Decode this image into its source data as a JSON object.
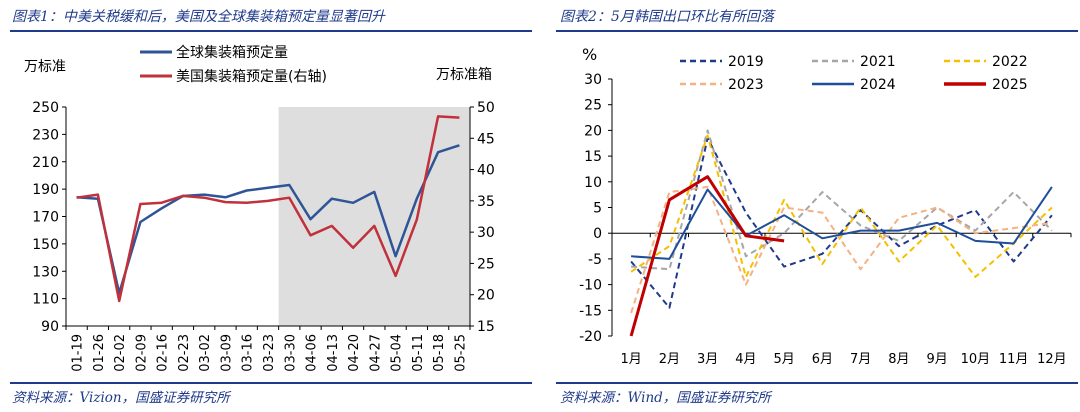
{
  "left": {
    "title": "图表1：中美关税缓和后，美国及全球集装箱预定量显著回升",
    "source": "资料来源：Vizion，国盛证券研究所",
    "chart_data": {
      "type": "line",
      "left_unit": "万标准",
      "right_unit": "万标准箱",
      "categories": [
        "01-19",
        "01-26",
        "02-02",
        "02-09",
        "02-16",
        "02-23",
        "03-02",
        "03-09",
        "03-16",
        "03-23",
        "03-30",
        "04-06",
        "04-13",
        "04-20",
        "04-27",
        "05-04",
        "05-11",
        "05-18",
        "05-25"
      ],
      "ylim_left": [
        90,
        250
      ],
      "yticks_left": [
        90,
        110,
        130,
        150,
        170,
        190,
        210,
        230,
        250
      ],
      "ylim_right": [
        15,
        50
      ],
      "yticks_right": [
        15,
        20,
        25,
        30,
        35,
        40,
        45,
        50
      ],
      "shaded_from": "03-30",
      "series": [
        {
          "name": "全球集装箱预定量",
          "axis": "left",
          "color": "#2f5597",
          "values": [
            184,
            183,
            114,
            166,
            176,
            185,
            186,
            184,
            189,
            191,
            193,
            168,
            183,
            180,
            188,
            141,
            183,
            217,
            222
          ]
        },
        {
          "name": "美国集装箱预定量(右轴)",
          "axis": "right",
          "color": "#c0313b",
          "values": [
            35.5,
            36,
            19,
            34.5,
            34.7,
            35.8,
            35.5,
            34.8,
            34.7,
            35,
            35.5,
            29.5,
            31,
            27.5,
            31,
            23,
            32,
            48.5,
            48.3
          ]
        }
      ],
      "grid": false,
      "legend": "top-left"
    }
  },
  "right": {
    "title": "图表2：5月韩国出口环比有所回落",
    "source": "资料来源：Wind，国盛证券研究所",
    "chart_data": {
      "type": "line",
      "ylabel": "%",
      "categories": [
        "1月",
        "2月",
        "3月",
        "4月",
        "5月",
        "6月",
        "7月",
        "8月",
        "9月",
        "10月",
        "11月",
        "12月"
      ],
      "ylim": [
        -20,
        30
      ],
      "yticks": [
        -20,
        -15,
        -10,
        -5,
        0,
        5,
        10,
        15,
        20,
        25,
        30
      ],
      "grid": false,
      "legend": "top",
      "series": [
        {
          "name": "2019",
          "color": "#1f3a8a",
          "dash": "6,4",
          "width": 2,
          "values": [
            -5.5,
            -14.5,
            18.5,
            4,
            -6.5,
            -4,
            4.5,
            -2.5,
            1.5,
            4.5,
            -5.5,
            3.5
          ]
        },
        {
          "name": "2021",
          "color": "#a6a6a6",
          "dash": "6,4",
          "width": 2,
          "values": [
            -6.5,
            -7,
            20,
            -4.5,
            0,
            8,
            1.5,
            -1.5,
            5,
            0.5,
            8,
            0.5
          ]
        },
        {
          "name": "2022",
          "color": "#f5c000",
          "dash": "6,4",
          "width": 2,
          "values": [
            -7.5,
            -2.5,
            19,
            -8.5,
            6.5,
            -6,
            5,
            -5.5,
            1.5,
            -8.5,
            -2,
            5
          ]
        },
        {
          "name": "2023",
          "color": "#f4b183",
          "dash": "6,4",
          "width": 2,
          "values": [
            -15.5,
            8,
            9,
            -10,
            5,
            4,
            -7,
            3,
            5,
            0,
            1,
            2
          ]
        },
        {
          "name": "2024",
          "color": "#1f4e9a",
          "dash": "",
          "width": 2,
          "values": [
            -4.5,
            -5,
            8.5,
            -0.5,
            3.5,
            -1,
            0.5,
            0.5,
            2,
            -1.5,
            -2,
            9
          ]
        },
        {
          "name": "2025",
          "color": "#c00000",
          "dash": "",
          "width": 3,
          "values": [
            -20,
            6.5,
            11,
            -0.5,
            -1.5,
            null,
            null,
            null,
            null,
            null,
            null,
            null
          ]
        }
      ]
    }
  }
}
